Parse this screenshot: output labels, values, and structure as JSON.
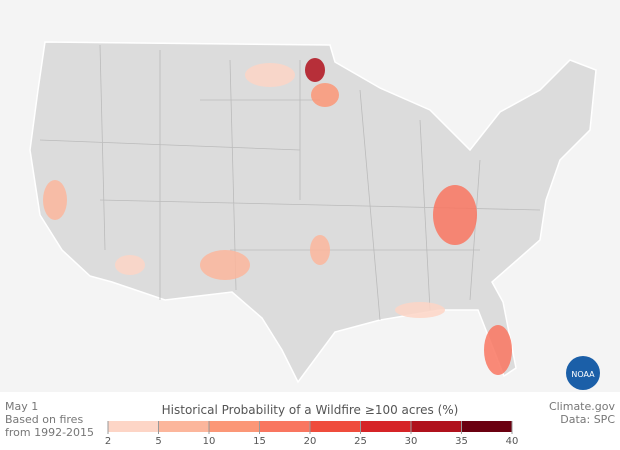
{
  "date": "May 1",
  "note_lines": [
    "Based on fires",
    "from 1992-2015"
  ],
  "legend": {
    "title": "Historical Probability of a Wildfire ≥100 acres (%)",
    "ticks": [
      2,
      5,
      10,
      15,
      20,
      25,
      30,
      35,
      40
    ],
    "colors": [
      "#fdd5c6",
      "#fcb69c",
      "#fb9777",
      "#f97660",
      "#ef4c3c",
      "#d62427",
      "#b0111c",
      "#6b0010"
    ]
  },
  "credit": "Climate.gov",
  "source": "Data: SPC",
  "logo": "NOAA"
}
